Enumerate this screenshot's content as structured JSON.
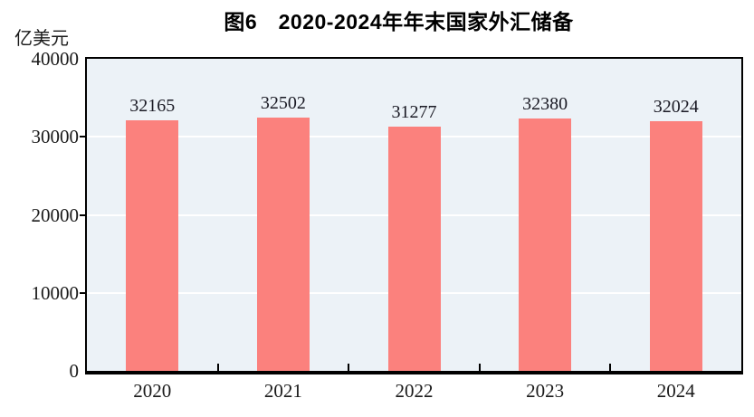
{
  "chart_data": {
    "type": "bar",
    "title": "图6　2020-2024年年末国家外汇储备",
    "figure_label": "图6",
    "ylabel": "亿美元",
    "xlabel": "",
    "categories": [
      "2020",
      "2021",
      "2022",
      "2023",
      "2024"
    ],
    "values": [
      32165,
      32502,
      31277,
      32380,
      32024
    ],
    "value_labels": [
      "32165",
      "32502",
      "31277",
      "32380",
      "32024"
    ],
    "ylim": [
      0,
      40000
    ],
    "yticks": [
      0,
      10000,
      20000,
      30000,
      40000
    ],
    "legend_position": "none",
    "grid": "horizontal-white-at-major-ticks",
    "colors": {
      "bar": "#FB817D",
      "plot_background": "#ECF2F7",
      "gridline": "#FFFFFF",
      "axis": "#000000",
      "text": "#1A1A1A"
    }
  }
}
